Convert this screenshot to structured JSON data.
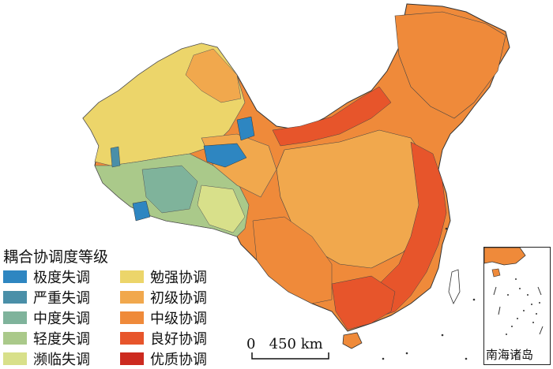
{
  "legend": {
    "title": "耦合协调度等级",
    "items": [
      {
        "label": "极度失调",
        "color": "#2e86c1"
      },
      {
        "label": "严重失调",
        "color": "#4a8fa8"
      },
      {
        "label": "中度失调",
        "color": "#7fb39b"
      },
      {
        "label": "轻度失调",
        "color": "#aac98a"
      },
      {
        "label": "濒临失调",
        "color": "#d8e08a"
      },
      {
        "label": "勉强协调",
        "color": "#ecd56a"
      },
      {
        "label": "初级协调",
        "color": "#f1a84d"
      },
      {
        "label": "中级协调",
        "color": "#ef8a3a"
      },
      {
        "label": "良好协调",
        "color": "#e7552b"
      },
      {
        "label": "优质协调",
        "color": "#cc2a1f"
      }
    ]
  },
  "scale": {
    "label": "0   450 km"
  },
  "inset": {
    "label": "南海诸岛"
  }
}
